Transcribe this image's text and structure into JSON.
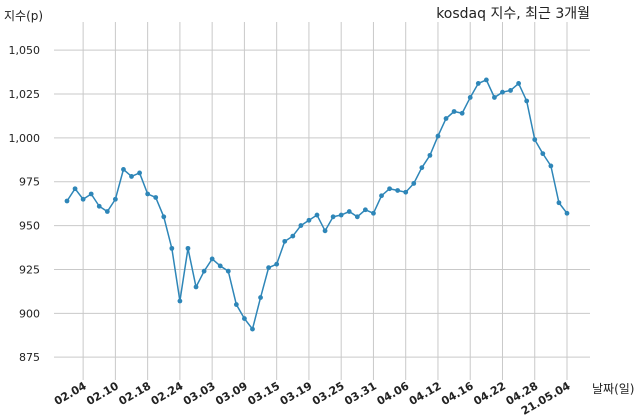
{
  "chart_data": {
    "type": "line",
    "title": "kosdaq 지수, 최근 3개월",
    "ylabel": "지수(p)",
    "xlabel": "날짜(일)",
    "ylim": [
      862,
      1066
    ],
    "grid": true,
    "legend": "none",
    "yticks": [
      875,
      900,
      925,
      950,
      975,
      1000,
      1025,
      1050
    ],
    "ytick_labels": [
      "875",
      "900",
      "925",
      "950",
      "975",
      "1,000",
      "1,025",
      "1,050"
    ],
    "xtick_labels": [
      "02.04",
      "02.10",
      "02.18",
      "02.24",
      "03.03",
      "03.09",
      "03.15",
      "03.19",
      "03.25",
      "03.31",
      "04.06",
      "04.12",
      "04.16",
      "04.22",
      "04.28",
      "21.05.04"
    ],
    "xtick_index": [
      2,
      6,
      10,
      14,
      18,
      22,
      26,
      30,
      34,
      38,
      42,
      46,
      50,
      54,
      58,
      62
    ],
    "series": [
      {
        "color": "#2e86b8",
        "values": [
          964,
          971,
          965,
          968,
          961,
          958,
          965,
          982,
          978,
          980,
          968,
          966,
          955,
          937,
          907,
          937,
          915,
          924,
          931,
          927,
          924,
          905,
          897,
          891,
          909,
          926,
          928,
          941,
          944,
          950,
          953,
          956,
          947,
          955,
          956,
          958,
          955,
          959,
          957,
          967,
          971,
          970,
          969,
          974,
          983,
          990,
          1001,
          1011,
          1015,
          1014,
          1023,
          1031,
          1033,
          1023,
          1026,
          1027,
          1031,
          1021,
          999,
          991,
          984,
          963,
          957
        ]
      }
    ]
  }
}
